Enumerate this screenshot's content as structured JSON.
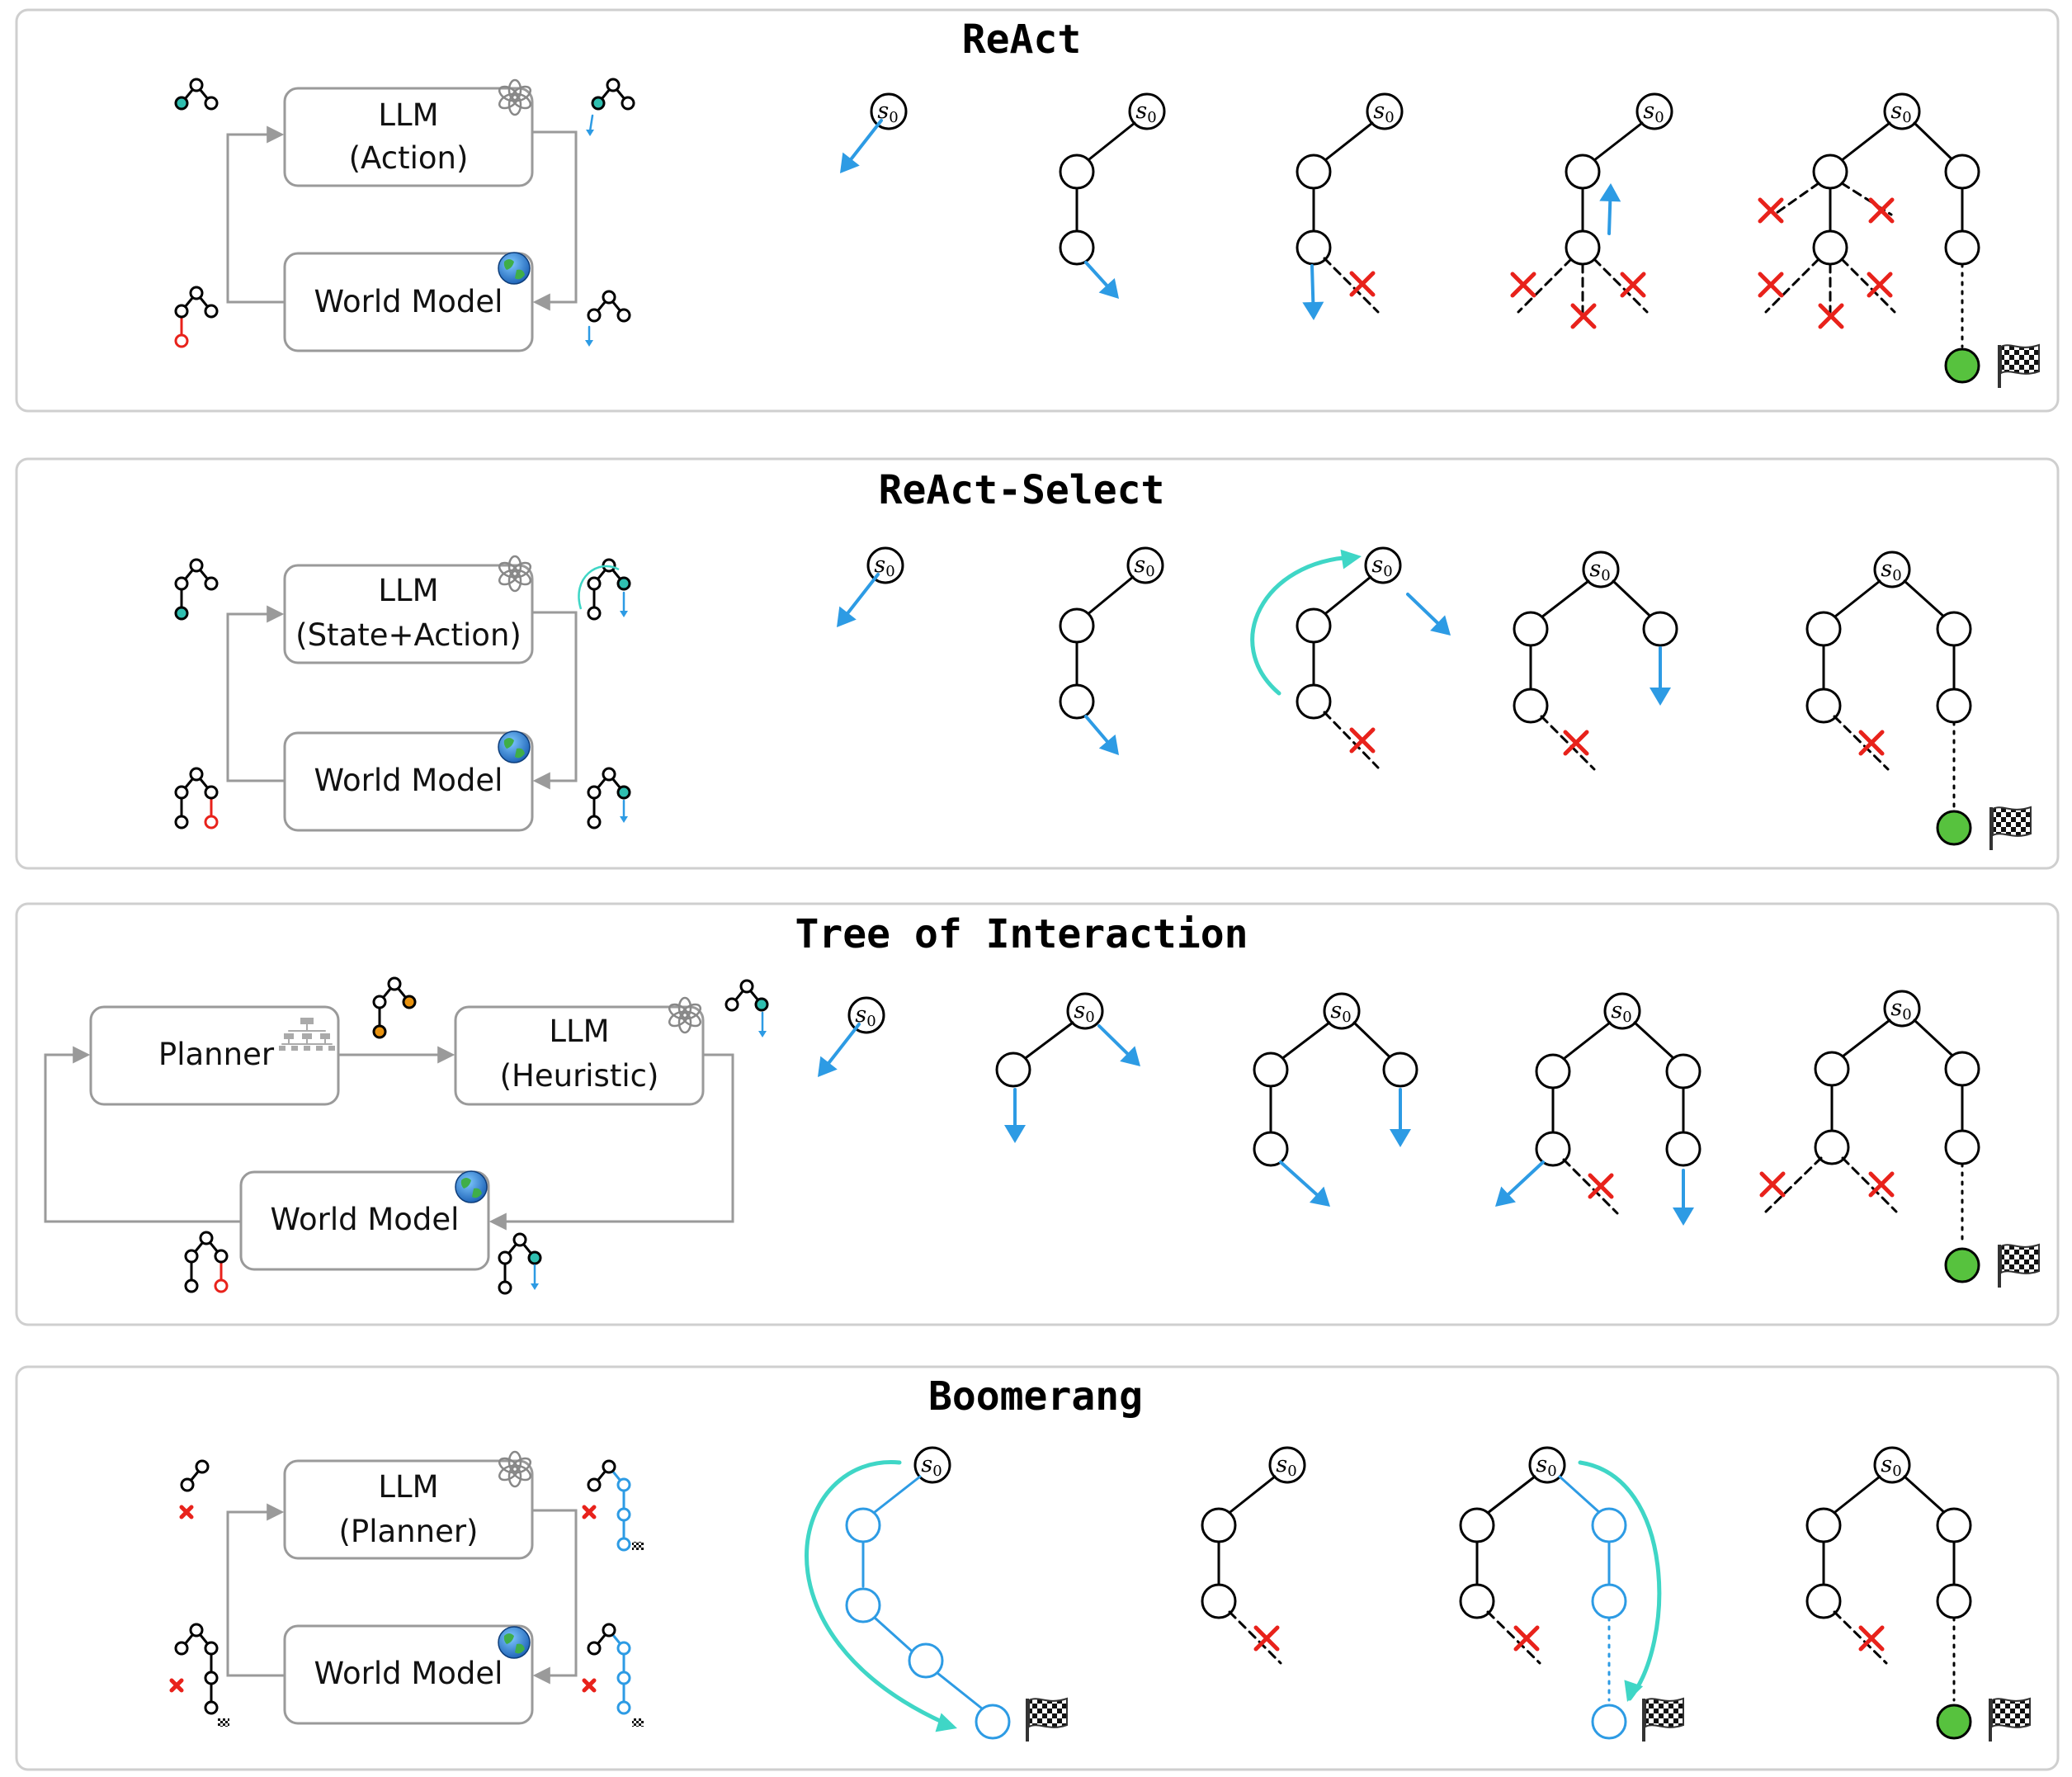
{
  "panels": [
    {
      "title": "ReAct",
      "blocks": {
        "llm_title": "LLM",
        "llm_subtitle": "(Action)",
        "world_model": "World Model"
      }
    },
    {
      "title": "ReAct-Select",
      "blocks": {
        "llm_title": "LLM",
        "llm_subtitle": "(State+Action)",
        "world_model": "World Model"
      }
    },
    {
      "title": "Tree of Interaction",
      "blocks": {
        "planner": "Planner",
        "llm_title": "LLM",
        "llm_subtitle": "(Heuristic)",
        "world_model": "World Model"
      }
    },
    {
      "title": "Boomerang",
      "blocks": {
        "llm_title": "LLM",
        "llm_subtitle": "(Planner)",
        "world_model": "World Model"
      }
    }
  ],
  "root_label": "s",
  "root_subscript": "0",
  "icons": {
    "llm": "openai-logo-icon",
    "world_model": "globe-icon",
    "planner": "org-chart-icon",
    "goal": "checkered-flag-icon",
    "fail": "red-x-icon",
    "expand": "blue-arrow-icon",
    "reselect": "cyan-curved-arrow-icon"
  },
  "colors": {
    "node_stroke": "#000000",
    "goal_node": "#57c23e",
    "fail_mark": "#e8221b",
    "expand_arrow": "#2d9be4",
    "reselect_arrow": "#3fd6c6",
    "selected_node": "#2fbfb0",
    "planner_node": "#e8920f",
    "plan_path": "#2d9be4",
    "block_border": "#9a9a9a",
    "panel_border": "#cfcfcf"
  }
}
